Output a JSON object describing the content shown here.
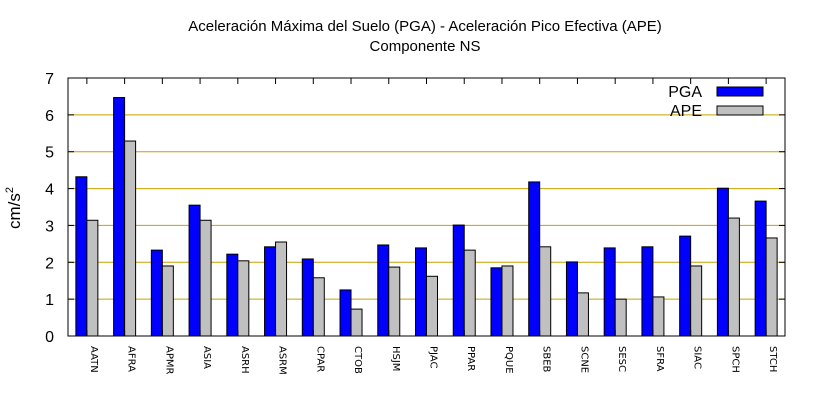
{
  "chart_data": {
    "type": "bar",
    "title": "Aceleración Máxima del Suelo (PGA) -  Aceleración Pico Efectiva (APE)",
    "subtitle": "Componente NS",
    "xlabel": "",
    "ylabel": "cm/s",
    "ylabel_superscript": "2",
    "ylim": [
      0,
      7
    ],
    "yticks": [
      "0",
      "1",
      "2",
      "3",
      "4",
      "5",
      "6",
      "7"
    ],
    "grid": true,
    "legend_position": "top-right",
    "categories": [
      "AATN",
      "AFRA",
      "APMR",
      "ASIA",
      "ASRH",
      "ASRM",
      "CPAR",
      "CTOB",
      "HSJM",
      "PJAC",
      "PPAR",
      "PQUE",
      "SBEB",
      "SCNE",
      "SESC",
      "SFRA",
      "SIAC",
      "SPCH",
      "STCH"
    ],
    "series": [
      {
        "name": "PGA",
        "color": "#0000ff",
        "values": [
          4.32,
          6.47,
          2.33,
          3.55,
          2.22,
          2.42,
          2.09,
          1.25,
          2.47,
          2.39,
          3.01,
          1.85,
          4.18,
          2.01,
          2.39,
          2.42,
          2.71,
          4.01,
          3.66
        ]
      },
      {
        "name": "APE",
        "color": "#c0c0c0",
        "values": [
          3.14,
          5.29,
          1.9,
          3.14,
          2.04,
          2.55,
          1.58,
          0.73,
          1.87,
          1.62,
          2.33,
          1.9,
          2.42,
          1.17,
          1.0,
          1.06,
          1.9,
          3.2,
          2.66
        ]
      }
    ],
    "colors": {
      "grid": "#c8a000",
      "frame": "#000000",
      "bar_outline": "#000000"
    }
  }
}
